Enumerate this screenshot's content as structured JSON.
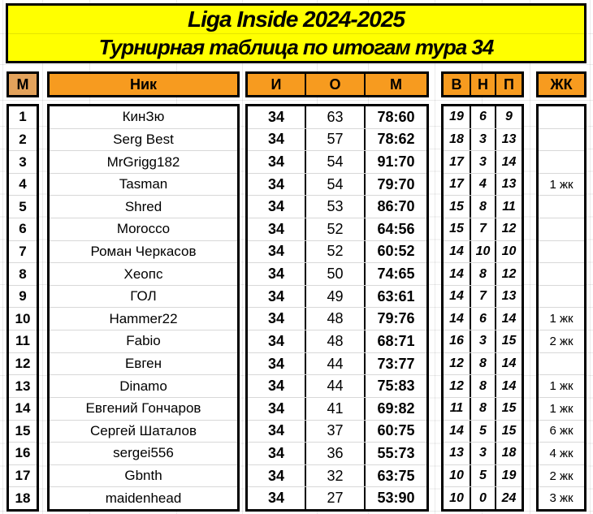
{
  "title": {
    "line1": "Liga Inside 2024-2025",
    "line2": "Турнирная таблица по итогам тура 34"
  },
  "columns": {
    "place": "М",
    "nick": "Ник",
    "games": "И",
    "points": "О",
    "goals": "М",
    "wins": "В",
    "draws": "Н",
    "losses": "П",
    "cards": "ЖК"
  },
  "colors": {
    "title_bg": "#FFFF00",
    "header_bg": "#F79B1F",
    "place_header_bg": "#E3A25B",
    "border": "#000000",
    "row_divider": "#D8D8D8"
  },
  "rows": [
    {
      "place": "1",
      "nick": "КинЗю",
      "games": "34",
      "points": "63",
      "goals": "78:60",
      "wins": "19",
      "draws": "6",
      "losses": "9",
      "cards": ""
    },
    {
      "place": "2",
      "nick": "Serg Best",
      "games": "34",
      "points": "57",
      "goals": "78:62",
      "wins": "18",
      "draws": "3",
      "losses": "13",
      "cards": ""
    },
    {
      "place": "3",
      "nick": "MrGrigg182",
      "games": "34",
      "points": "54",
      "goals": "91:70",
      "wins": "17",
      "draws": "3",
      "losses": "14",
      "cards": ""
    },
    {
      "place": "4",
      "nick": "Tasman",
      "games": "34",
      "points": "54",
      "goals": "79:70",
      "wins": "17",
      "draws": "4",
      "losses": "13",
      "cards": "1 жк"
    },
    {
      "place": "5",
      "nick": "Shred",
      "games": "34",
      "points": "53",
      "goals": "86:70",
      "wins": "15",
      "draws": "8",
      "losses": "11",
      "cards": ""
    },
    {
      "place": "6",
      "nick": "Morocco",
      "games": "34",
      "points": "52",
      "goals": "64:56",
      "wins": "15",
      "draws": "7",
      "losses": "12",
      "cards": ""
    },
    {
      "place": "7",
      "nick": "Роман Черкасов",
      "games": "34",
      "points": "52",
      "goals": "60:52",
      "wins": "14",
      "draws": "10",
      "losses": "10",
      "cards": ""
    },
    {
      "place": "8",
      "nick": "Хеопс",
      "games": "34",
      "points": "50",
      "goals": "74:65",
      "wins": "14",
      "draws": "8",
      "losses": "12",
      "cards": ""
    },
    {
      "place": "9",
      "nick": "ГОЛ",
      "games": "34",
      "points": "49",
      "goals": "63:61",
      "wins": "14",
      "draws": "7",
      "losses": "13",
      "cards": ""
    },
    {
      "place": "10",
      "nick": "Hammer22",
      "games": "34",
      "points": "48",
      "goals": "79:76",
      "wins": "14",
      "draws": "6",
      "losses": "14",
      "cards": "1 жк"
    },
    {
      "place": "11",
      "nick": "Fabio",
      "games": "34",
      "points": "48",
      "goals": "68:71",
      "wins": "16",
      "draws": "3",
      "losses": "15",
      "cards": "2 жк"
    },
    {
      "place": "12",
      "nick": "Евген",
      "games": "34",
      "points": "44",
      "goals": "73:77",
      "wins": "12",
      "draws": "8",
      "losses": "14",
      "cards": ""
    },
    {
      "place": "13",
      "nick": "Dinamo",
      "games": "34",
      "points": "44",
      "goals": "75:83",
      "wins": "12",
      "draws": "8",
      "losses": "14",
      "cards": "1 жк"
    },
    {
      "place": "14",
      "nick": "Евгений Гончаров",
      "games": "34",
      "points": "41",
      "goals": "69:82",
      "wins": "11",
      "draws": "8",
      "losses": "15",
      "cards": "1 жк"
    },
    {
      "place": "15",
      "nick": "Сергей Шаталов",
      "games": "34",
      "points": "37",
      "goals": "60:75",
      "wins": "14",
      "draws": "5",
      "losses": "15",
      "cards": "6 жк"
    },
    {
      "place": "16",
      "nick": "sergei556",
      "games": "34",
      "points": "36",
      "goals": "55:73",
      "wins": "13",
      "draws": "3",
      "losses": "18",
      "cards": "4 жк"
    },
    {
      "place": "17",
      "nick": "Gbnth",
      "games": "34",
      "points": "32",
      "goals": "63:75",
      "wins": "10",
      "draws": "5",
      "losses": "19",
      "cards": "2 жк"
    },
    {
      "place": "18",
      "nick": "maidenhead",
      "games": "34",
      "points": "27",
      "goals": "53:90",
      "wins": "10",
      "draws": "0",
      "losses": "24",
      "cards": "3 жк"
    }
  ]
}
